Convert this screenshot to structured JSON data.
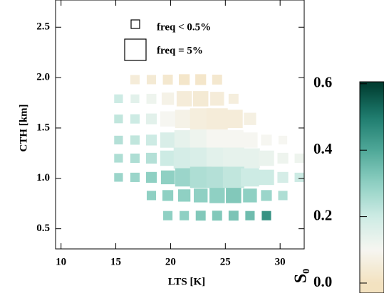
{
  "chart_data": {
    "type": "scatter",
    "xlabel": "LTS [K]",
    "ylabel": "CTH [km]",
    "colorbar_label": "S₀",
    "xlim": [
      9.5,
      32.2
    ],
    "ylim": [
      0.3,
      2.77
    ],
    "xticks": [
      10,
      15,
      20,
      25,
      30
    ],
    "yticks": [
      0.5,
      {
        "value": 1.0,
        "label": "1.0"
      },
      1.5,
      {
        "value": 2.0,
        "label": "2.0"
      },
      2.5
    ],
    "clim": [
      -0.03,
      0.606
    ],
    "cticks": [
      {
        "value": 0.0,
        "label": "0.0"
      },
      0.2,
      0.4,
      0.6
    ],
    "colormap": [
      "#f3e2c0",
      "#f6f6f1",
      "#cdebe4",
      "#8fd0c3",
      "#4fa898",
      "#1e7c6e",
      "#003c30"
    ],
    "colormap_range": [
      0,
      0.6
    ],
    "legend": [
      "freq < 0.5%",
      "freq = 5%"
    ],
    "series": [
      {
        "name": "freq",
        "x": [
          16.75,
          18.25,
          19.75,
          21.25,
          22.75,
          24.25,
          15.25,
          16.75,
          18.25,
          19.75,
          21.25,
          22.75,
          24.25,
          25.75,
          15.25,
          16.75,
          18.25,
          19.75,
          21.25,
          22.75,
          24.25,
          25.75,
          27.25,
          15.25,
          16.75,
          18.25,
          19.75,
          21.25,
          22.75,
          24.25,
          25.75,
          27.25,
          28.75,
          30.25,
          15.25,
          16.75,
          18.25,
          19.75,
          21.25,
          22.75,
          24.25,
          25.75,
          27.25,
          28.75,
          30.25,
          31.75,
          15.25,
          16.75,
          18.25,
          19.75,
          21.25,
          22.75,
          24.25,
          25.75,
          27.25,
          28.75,
          30.25,
          31.75,
          18.25,
          19.75,
          21.25,
          22.75,
          24.25,
          25.75,
          27.25,
          28.75,
          30.25,
          19.75,
          21.25,
          22.75,
          24.25,
          25.75,
          27.25,
          28.75
        ],
        "values": [
          1.98,
          1.98,
          1.98,
          1.98,
          1.98,
          1.98,
          1.79,
          1.79,
          1.79,
          1.79,
          1.79,
          1.79,
          1.79,
          1.79,
          1.59,
          1.59,
          1.59,
          1.59,
          1.59,
          1.59,
          1.59,
          1.59,
          1.59,
          1.38,
          1.38,
          1.38,
          1.38,
          1.38,
          1.38,
          1.38,
          1.38,
          1.38,
          1.38,
          1.38,
          1.2,
          1.2,
          1.2,
          1.2,
          1.2,
          1.2,
          1.2,
          1.2,
          1.2,
          1.2,
          1.2,
          1.2,
          1.01,
          1.01,
          1.01,
          1.01,
          1.01,
          1.01,
          1.01,
          1.01,
          1.01,
          1.01,
          1.01,
          1.01,
          0.83,
          0.83,
          0.83,
          0.83,
          0.83,
          0.83,
          0.83,
          0.83,
          0.83,
          0.63,
          0.63,
          0.63,
          0.63,
          0.63,
          0.63,
          0.63
        ],
        "sizes": [
          1,
          1,
          1.2,
          1.5,
          1.5,
          1.2,
          0.8,
          0.8,
          1.2,
          2,
          3,
          3,
          2.5,
          1.2,
          0.8,
          1,
          1.5,
          3,
          4,
          5,
          5,
          4,
          2,
          0.8,
          1,
          1.5,
          3,
          4.5,
          5,
          5,
          4.5,
          3,
          1.5,
          0.8,
          0.8,
          1,
          1.5,
          3,
          5,
          5,
          5,
          5,
          4.5,
          3,
          1.5,
          1,
          0.8,
          1,
          1.5,
          2.5,
          4,
          5,
          5,
          5,
          4,
          3,
          1.5,
          1,
          1,
          1.5,
          2,
          2.5,
          3,
          3,
          2.5,
          1.5,
          1,
          1,
          1,
          1.2,
          1.2,
          1.2,
          1,
          1
        ],
        "colors": [
          0.05,
          0.04,
          0.03,
          0.02,
          0.02,
          0.03,
          0.2,
          0.15,
          0.12,
          0.08,
          0.05,
          0.04,
          0.05,
          0.06,
          0.22,
          0.2,
          0.15,
          0.1,
          0.08,
          0.06,
          0.05,
          0.05,
          0.07,
          0.24,
          0.22,
          0.2,
          0.17,
          0.14,
          0.12,
          0.1,
          0.1,
          0.1,
          0.1,
          0.1,
          0.25,
          0.25,
          0.24,
          0.2,
          0.18,
          0.17,
          0.15,
          0.14,
          0.14,
          0.13,
          0.12,
          0.12,
          0.28,
          0.28,
          0.3,
          0.3,
          0.28,
          0.25,
          0.24,
          0.22,
          0.2,
          0.2,
          0.18,
          0.2,
          0.3,
          0.3,
          0.3,
          0.3,
          0.3,
          0.32,
          0.3,
          0.28,
          0.25,
          0.3,
          0.3,
          0.32,
          0.32,
          0.33,
          0.35,
          0.45
        ]
      }
    ]
  }
}
